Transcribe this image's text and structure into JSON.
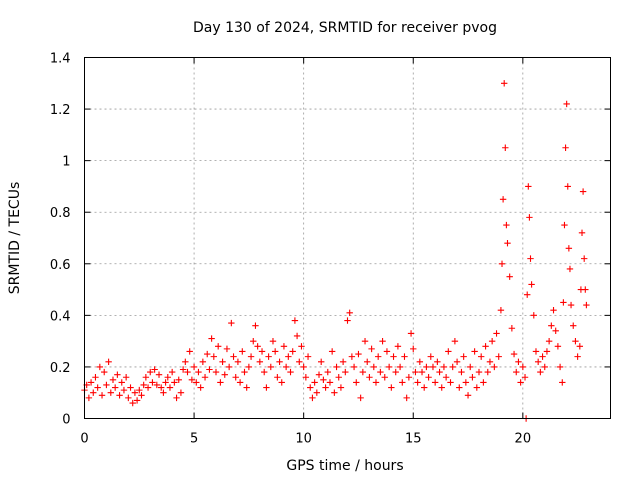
{
  "chart_data": {
    "type": "scatter",
    "title": "Day 130 of 2024, SRMTID for receiver pvog",
    "xlabel": "GPS time / hours",
    "ylabel": "SRMTID / TECUs",
    "xlim": [
      0,
      24
    ],
    "ylim": [
      0,
      1.4
    ],
    "xticks": [
      0,
      5,
      10,
      15,
      20
    ],
    "yticks": [
      0,
      0.2,
      0.4,
      0.6,
      0.8,
      1,
      1.2,
      1.4
    ],
    "xtick_labels": [
      "0",
      "5",
      "10",
      "15",
      "20"
    ],
    "ytick_labels": [
      "0",
      "0.2",
      "0.4",
      "0.6",
      "0.8",
      "1",
      "1.2",
      "1.4"
    ],
    "grid": true,
    "marker": "+",
    "color": "#ff0000",
    "series": [
      {
        "name": "SRMTID",
        "points": [
          [
            0.0,
            0.11
          ],
          [
            0.1,
            0.13
          ],
          [
            0.2,
            0.08
          ],
          [
            0.3,
            0.14
          ],
          [
            0.4,
            0.1
          ],
          [
            0.5,
            0.16
          ],
          [
            0.6,
            0.12
          ],
          [
            0.7,
            0.2
          ],
          [
            0.8,
            0.09
          ],
          [
            0.9,
            0.18
          ],
          [
            1.0,
            0.13
          ],
          [
            1.1,
            0.22
          ],
          [
            1.2,
            0.1
          ],
          [
            1.3,
            0.15
          ],
          [
            1.4,
            0.12
          ],
          [
            1.5,
            0.17
          ],
          [
            1.6,
            0.09
          ],
          [
            1.7,
            0.14
          ],
          [
            1.8,
            0.11
          ],
          [
            1.9,
            0.16
          ],
          [
            2.0,
            0.08
          ],
          [
            2.1,
            0.12
          ],
          [
            2.2,
            0.06
          ],
          [
            2.3,
            0.1
          ],
          [
            2.4,
            0.07
          ],
          [
            2.5,
            0.11
          ],
          [
            2.6,
            0.09
          ],
          [
            2.7,
            0.13
          ],
          [
            2.8,
            0.16
          ],
          [
            2.9,
            0.12
          ],
          [
            3.0,
            0.18
          ],
          [
            3.1,
            0.14
          ],
          [
            3.2,
            0.19
          ],
          [
            3.3,
            0.13
          ],
          [
            3.4,
            0.17
          ],
          [
            3.5,
            0.12
          ],
          [
            3.6,
            0.1
          ],
          [
            3.7,
            0.14
          ],
          [
            3.8,
            0.16
          ],
          [
            3.9,
            0.12
          ],
          [
            4.0,
            0.18
          ],
          [
            4.1,
            0.14
          ],
          [
            4.2,
            0.08
          ],
          [
            4.3,
            0.15
          ],
          [
            4.4,
            0.1
          ],
          [
            4.5,
            0.19
          ],
          [
            4.6,
            0.22
          ],
          [
            4.7,
            0.18
          ],
          [
            4.8,
            0.26
          ],
          [
            4.9,
            0.15
          ],
          [
            5.0,
            0.2
          ],
          [
            5.1,
            0.14
          ],
          [
            5.2,
            0.18
          ],
          [
            5.3,
            0.12
          ],
          [
            5.4,
            0.22
          ],
          [
            5.5,
            0.16
          ],
          [
            5.6,
            0.25
          ],
          [
            5.7,
            0.19
          ],
          [
            5.8,
            0.31
          ],
          [
            5.9,
            0.24
          ],
          [
            6.0,
            0.18
          ],
          [
            6.1,
            0.28
          ],
          [
            6.2,
            0.14
          ],
          [
            6.3,
            0.22
          ],
          [
            6.4,
            0.17
          ],
          [
            6.5,
            0.27
          ],
          [
            6.6,
            0.2
          ],
          [
            6.7,
            0.37
          ],
          [
            6.8,
            0.24
          ],
          [
            6.9,
            0.16
          ],
          [
            7.0,
            0.22
          ],
          [
            7.1,
            0.14
          ],
          [
            7.2,
            0.26
          ],
          [
            7.3,
            0.18
          ],
          [
            7.4,
            0.12
          ],
          [
            7.5,
            0.2
          ],
          [
            7.6,
            0.24
          ],
          [
            7.7,
            0.3
          ],
          [
            7.8,
            0.36
          ],
          [
            7.9,
            0.28
          ],
          [
            8.0,
            0.22
          ],
          [
            8.1,
            0.26
          ],
          [
            8.2,
            0.18
          ],
          [
            8.3,
            0.12
          ],
          [
            8.4,
            0.24
          ],
          [
            8.5,
            0.2
          ],
          [
            8.6,
            0.3
          ],
          [
            8.7,
            0.26
          ],
          [
            8.8,
            0.16
          ],
          [
            8.9,
            0.22
          ],
          [
            9.0,
            0.14
          ],
          [
            9.1,
            0.28
          ],
          [
            9.2,
            0.2
          ],
          [
            9.3,
            0.24
          ],
          [
            9.4,
            0.18
          ],
          [
            9.5,
            0.26
          ],
          [
            9.6,
            0.38
          ],
          [
            9.7,
            0.32
          ],
          [
            9.8,
            0.22
          ],
          [
            9.9,
            0.28
          ],
          [
            10.0,
            0.2
          ],
          [
            10.1,
            0.16
          ],
          [
            10.2,
            0.24
          ],
          [
            10.3,
            0.12
          ],
          [
            10.4,
            0.08
          ],
          [
            10.5,
            0.14
          ],
          [
            10.6,
            0.1
          ],
          [
            10.7,
            0.17
          ],
          [
            10.8,
            0.22
          ],
          [
            10.9,
            0.15
          ],
          [
            11.0,
            0.12
          ],
          [
            11.1,
            0.18
          ],
          [
            11.2,
            0.14
          ],
          [
            11.3,
            0.26
          ],
          [
            11.4,
            0.1
          ],
          [
            11.5,
            0.2
          ],
          [
            11.6,
            0.16
          ],
          [
            11.7,
            0.12
          ],
          [
            11.8,
            0.22
          ],
          [
            11.9,
            0.18
          ],
          [
            12.0,
            0.38
          ],
          [
            12.1,
            0.41
          ],
          [
            12.2,
            0.24
          ],
          [
            12.3,
            0.2
          ],
          [
            12.4,
            0.14
          ],
          [
            12.5,
            0.25
          ],
          [
            12.6,
            0.08
          ],
          [
            12.7,
            0.18
          ],
          [
            12.8,
            0.3
          ],
          [
            12.9,
            0.22
          ],
          [
            13.0,
            0.16
          ],
          [
            13.1,
            0.27
          ],
          [
            13.2,
            0.2
          ],
          [
            13.3,
            0.14
          ],
          [
            13.4,
            0.24
          ],
          [
            13.5,
            0.18
          ],
          [
            13.6,
            0.3
          ],
          [
            13.7,
            0.16
          ],
          [
            13.8,
            0.26
          ],
          [
            13.9,
            0.2
          ],
          [
            14.0,
            0.12
          ],
          [
            14.1,
            0.24
          ],
          [
            14.2,
            0.18
          ],
          [
            14.3,
            0.28
          ],
          [
            14.4,
            0.2
          ],
          [
            14.5,
            0.14
          ],
          [
            14.6,
            0.24
          ],
          [
            14.7,
            0.08
          ],
          [
            14.8,
            0.16
          ],
          [
            14.9,
            0.33
          ],
          [
            15.0,
            0.27
          ],
          [
            15.1,
            0.18
          ],
          [
            15.2,
            0.14
          ],
          [
            15.3,
            0.22
          ],
          [
            15.4,
            0.18
          ],
          [
            15.5,
            0.12
          ],
          [
            15.6,
            0.2
          ],
          [
            15.7,
            0.16
          ],
          [
            15.8,
            0.24
          ],
          [
            15.9,
            0.2
          ],
          [
            16.0,
            0.14
          ],
          [
            16.1,
            0.22
          ],
          [
            16.2,
            0.18
          ],
          [
            16.3,
            0.12
          ],
          [
            16.4,
            0.2
          ],
          [
            16.5,
            0.16
          ],
          [
            16.6,
            0.26
          ],
          [
            16.7,
            0.14
          ],
          [
            16.8,
            0.2
          ],
          [
            16.9,
            0.3
          ],
          [
            17.0,
            0.22
          ],
          [
            17.1,
            0.12
          ],
          [
            17.2,
            0.18
          ],
          [
            17.3,
            0.24
          ],
          [
            17.4,
            0.14
          ],
          [
            17.5,
            0.09
          ],
          [
            17.6,
            0.2
          ],
          [
            17.7,
            0.16
          ],
          [
            17.8,
            0.26
          ],
          [
            17.9,
            0.12
          ],
          [
            18.0,
            0.18
          ],
          [
            18.1,
            0.24
          ],
          [
            18.2,
            0.14
          ],
          [
            18.3,
            0.28
          ],
          [
            18.4,
            0.18
          ],
          [
            18.5,
            0.22
          ],
          [
            18.6,
            0.3
          ],
          [
            18.7,
            0.2
          ],
          [
            18.8,
            0.33
          ],
          [
            18.9,
            0.24
          ],
          [
            19.0,
            0.42
          ],
          [
            19.05,
            0.6
          ],
          [
            19.1,
            0.85
          ],
          [
            19.15,
            1.3
          ],
          [
            19.2,
            1.05
          ],
          [
            19.25,
            0.75
          ],
          [
            19.3,
            0.68
          ],
          [
            19.4,
            0.55
          ],
          [
            19.5,
            0.35
          ],
          [
            19.6,
            0.25
          ],
          [
            19.7,
            0.18
          ],
          [
            19.8,
            0.22
          ],
          [
            19.9,
            0.14
          ],
          [
            20.0,
            0.2
          ],
          [
            20.1,
            0.16
          ],
          [
            20.15,
            0.0
          ],
          [
            20.2,
            0.48
          ],
          [
            20.25,
            0.9
          ],
          [
            20.3,
            0.78
          ],
          [
            20.35,
            0.62
          ],
          [
            20.4,
            0.52
          ],
          [
            20.5,
            0.4
          ],
          [
            20.6,
            0.26
          ],
          [
            20.7,
            0.22
          ],
          [
            20.8,
            0.18
          ],
          [
            20.9,
            0.24
          ],
          [
            21.0,
            0.2
          ],
          [
            21.1,
            0.26
          ],
          [
            21.2,
            0.3
          ],
          [
            21.3,
            0.36
          ],
          [
            21.4,
            0.42
          ],
          [
            21.5,
            0.34
          ],
          [
            21.6,
            0.28
          ],
          [
            21.7,
            0.2
          ],
          [
            21.8,
            0.14
          ],
          [
            21.85,
            0.45
          ],
          [
            21.9,
            0.75
          ],
          [
            21.95,
            1.05
          ],
          [
            22.0,
            1.22
          ],
          [
            22.05,
            0.9
          ],
          [
            22.1,
            0.66
          ],
          [
            22.15,
            0.58
          ],
          [
            22.2,
            0.44
          ],
          [
            22.3,
            0.36
          ],
          [
            22.4,
            0.3
          ],
          [
            22.5,
            0.24
          ],
          [
            22.6,
            0.28
          ],
          [
            22.65,
            0.5
          ],
          [
            22.7,
            0.72
          ],
          [
            22.75,
            0.88
          ],
          [
            22.8,
            0.62
          ],
          [
            22.85,
            0.5
          ],
          [
            22.9,
            0.44
          ]
        ]
      }
    ]
  }
}
